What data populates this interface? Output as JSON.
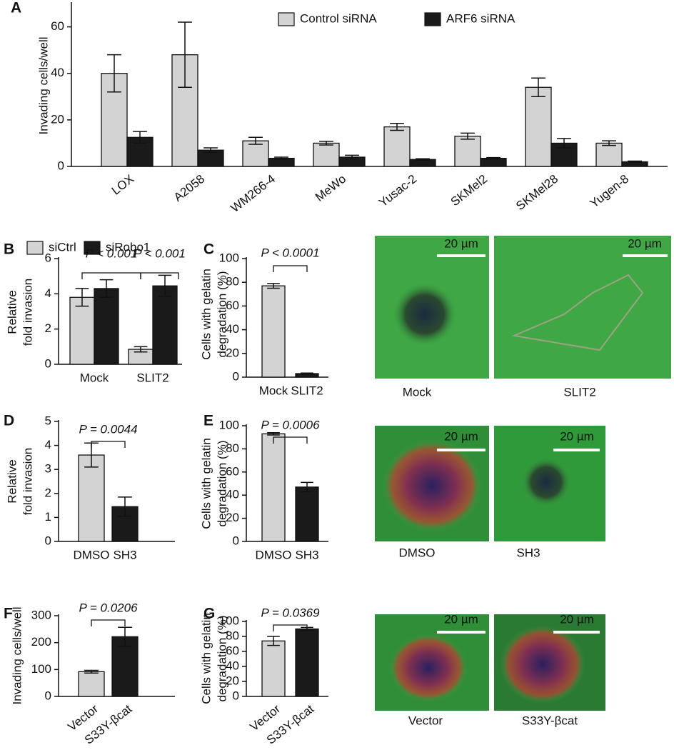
{
  "chart_data": [
    {
      "type": "bar",
      "panel": "A",
      "ylabel": "Invading cells/well",
      "categories": [
        "LOX",
        "A2058",
        "WM266-4",
        "MeWo",
        "Yusac-2",
        "SKMel2",
        "SKMel28",
        "Yugen-8"
      ],
      "series": [
        {
          "name": "Control siRNA",
          "color": "#d3d3d3",
          "values": [
            40,
            48,
            11,
            10,
            17,
            13,
            34,
            10
          ],
          "errors": [
            8,
            14,
            1.5,
            0.8,
            1.5,
            1.3,
            4,
            1
          ]
        },
        {
          "name": "ARF6 siRNA",
          "color": "#1a1a1a",
          "values": [
            12.5,
            7,
            3.5,
            4,
            3,
            3.5,
            10,
            2
          ],
          "errors": [
            2.5,
            1,
            0.5,
            0.8,
            0.3,
            0.3,
            2,
            0.3
          ]
        }
      ],
      "ylim": [
        0,
        70
      ],
      "yticks": [
        0,
        20,
        40,
        60
      ]
    },
    {
      "type": "bar",
      "panel": "B",
      "ylabel": [
        "Relative",
        "fold invasion"
      ],
      "categories": [
        "Mock",
        "SLIT2"
      ],
      "series": [
        {
          "name": "siCtrl",
          "color": "#d3d3d3",
          "values": [
            3.8,
            0.85
          ],
          "errors": [
            0.5,
            0.15
          ]
        },
        {
          "name": "siRobo1",
          "color": "#1a1a1a",
          "values": [
            4.3,
            4.45
          ],
          "errors": [
            0.5,
            0.6
          ]
        }
      ],
      "ylim": [
        0,
        6
      ],
      "yticks": [
        0,
        2,
        4,
        6
      ],
      "annotations": [
        "P < 0.001",
        "P < 0.001"
      ]
    },
    {
      "type": "bar",
      "panel": "C",
      "ylabel": [
        "Cells with gelatin",
        "degradation (%)"
      ],
      "categories": [
        "Mock",
        "SLIT2"
      ],
      "values": [
        77,
        3
      ],
      "errors": [
        2,
        0.5
      ],
      "colors": [
        "#d3d3d3",
        "#1a1a1a"
      ],
      "ylim": [
        0,
        100
      ],
      "yticks": [
        0,
        20,
        40,
        60,
        80,
        100
      ],
      "annotations": [
        "P < 0.0001"
      ]
    },
    {
      "type": "bar",
      "panel": "D",
      "ylabel": [
        "Relative",
        "fold invasion"
      ],
      "categories": [
        "DMSO",
        "SH3"
      ],
      "values": [
        3.6,
        1.45
      ],
      "errors": [
        0.5,
        0.4
      ],
      "colors": [
        "#d3d3d3",
        "#1a1a1a"
      ],
      "ylim": [
        0,
        5
      ],
      "yticks": [
        0,
        1,
        2,
        3,
        4,
        5
      ],
      "annotations": [
        "P = 0.0044"
      ]
    },
    {
      "type": "bar",
      "panel": "E",
      "ylabel": [
        "Cells with gelatin",
        "degradation (%)"
      ],
      "categories": [
        "DMSO",
        "SH3"
      ],
      "values": [
        93,
        47
      ],
      "errors": [
        1,
        4
      ],
      "colors": [
        "#d3d3d3",
        "#1a1a1a"
      ],
      "ylim": [
        0,
        100
      ],
      "yticks": [
        0,
        20,
        40,
        60,
        80,
        100
      ],
      "annotations": [
        "P = 0.0006"
      ]
    },
    {
      "type": "bar",
      "panel": "F",
      "ylabel": "Invading cells/well",
      "categories": [
        "Vector",
        "S33Y-βcat"
      ],
      "values": [
        92,
        222
      ],
      "errors": [
        5,
        35
      ],
      "colors": [
        "#d3d3d3",
        "#1a1a1a"
      ],
      "ylim": [
        0,
        300
      ],
      "yticks": [
        0,
        100,
        200,
        300
      ],
      "annotations": [
        "P = 0.0206"
      ]
    },
    {
      "type": "bar",
      "panel": "G",
      "ylabel": [
        "Cells with gelatin",
        "degradation (%)"
      ],
      "categories": [
        "Vector",
        "S33Y-βcat"
      ],
      "values": [
        74,
        90
      ],
      "errors": [
        6,
        2
      ],
      "colors": [
        "#d3d3d3",
        "#1a1a1a"
      ],
      "ylim": [
        0,
        100
      ],
      "yticks": [
        0,
        20,
        40,
        60,
        80,
        100
      ],
      "annotations": [
        "P = 0.0369"
      ]
    }
  ],
  "images": [
    {
      "caption": "Mock",
      "scale": "20 µm"
    },
    {
      "caption": "SLIT2",
      "scale": "20 µm"
    },
    {
      "caption": "DMSO",
      "scale": "20 µm"
    },
    {
      "caption": "SH3",
      "scale": "20 µm"
    },
    {
      "caption": "Vector",
      "scale": "20 µm"
    },
    {
      "caption": "S33Y-βcat",
      "scale": "20 µm"
    }
  ]
}
